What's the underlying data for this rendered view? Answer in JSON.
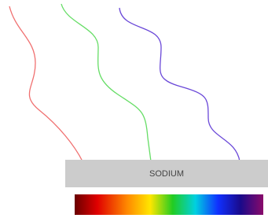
{
  "label": "SODIUM"
}
